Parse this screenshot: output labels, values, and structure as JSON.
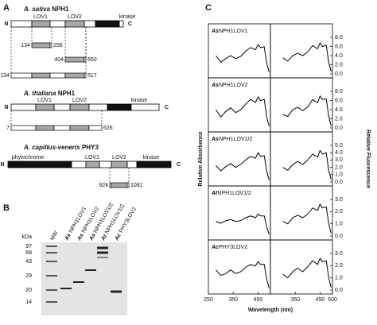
{
  "panel_a": {
    "label": "A",
    "constructs": [
      {
        "species": "A. sativa",
        "protein": "NPH1",
        "n_term": "N",
        "c_term": "C",
        "domains": [
          "LOV1",
          "LOV2",
          "kinase"
        ],
        "fragments": [
          {
            "start": 134,
            "end": 256
          },
          {
            "start": 404,
            "end": 550
          },
          {
            "start": 134,
            "end": 517
          }
        ]
      },
      {
        "species": "A. thaliana",
        "protein": "NPH1",
        "n_term": "N",
        "c_term": "C",
        "domains": [
          "LOV1",
          "LOV2",
          "kinase"
        ],
        "fragments": [
          {
            "start": 7,
            "end": 626
          }
        ]
      },
      {
        "species": "A. capillus-veneris",
        "protein": "PHY3",
        "n_term": "N",
        "c_term": "C",
        "domains": [
          "phytochrome",
          "LOV1",
          "LOV2",
          "kinase"
        ],
        "fragments": [
          {
            "start": 924,
            "end": 1081
          }
        ]
      }
    ]
  },
  "panel_b": {
    "label": "B",
    "unit": "kDa",
    "markers": [
      97,
      68,
      43,
      29,
      20,
      14
    ],
    "lanes": [
      {
        "name": "MW"
      },
      {
        "prefix": "As",
        "name": "NPH1LOV1"
      },
      {
        "prefix": "As",
        "name": "NPH1LOV2"
      },
      {
        "prefix": "As",
        "name": "NPH1LOV1/2"
      },
      {
        "prefix": "At",
        "name": "NPH1LOV1/2"
      },
      {
        "prefix": "Ac",
        "name": "PHY3LOV2"
      }
    ]
  },
  "panel_c": {
    "label": "C",
    "y_label": "Relative Absorbance",
    "y2_label": "Relative Fluorescence",
    "x_label": "Wavelength (nm)",
    "xlim": [
      250,
      500
    ],
    "xticks_left": [
      250,
      350,
      450
    ],
    "xticks_right": [
      350,
      450,
      500
    ],
    "x": [
      280,
      300,
      320,
      340,
      360,
      380,
      400,
      420,
      440,
      450,
      460,
      475,
      485,
      495
    ],
    "rows": [
      {
        "prefix": "As",
        "name": "NPH1LOV1",
        "ylim": [
          0,
          1
        ],
        "absorbance": [
          0.5,
          0.32,
          0.42,
          0.5,
          0.42,
          0.48,
          0.62,
          0.72,
          0.66,
          0.8,
          0.72,
          0.74,
          0.3,
          0.05
        ],
        "y2lim": [
          0,
          8
        ],
        "y2ticks": [
          {
            "value": 0,
            "label": "0.0"
          },
          {
            "value": 2,
            "label": "2.0"
          },
          {
            "value": 4,
            "label": "4.0"
          },
          {
            "value": 6,
            "label": "6.0"
          },
          {
            "value": 8,
            "label": "8.0"
          }
        ],
        "fluorescence": [
          null,
          3.5,
          2.8,
          4,
          4.5,
          4,
          4.8,
          6.2,
          5.5,
          6.8,
          6,
          6.3,
          2.5,
          0.5
        ]
      },
      {
        "prefix": "As",
        "name": "NPH1LOV2",
        "ylim": [
          0,
          1
        ],
        "absorbance": [
          0.5,
          0.3,
          0.45,
          0.55,
          0.42,
          0.5,
          0.65,
          0.78,
          0.7,
          0.85,
          0.75,
          0.78,
          0.3,
          0.05
        ],
        "y2lim": [
          0,
          8
        ],
        "y2ticks": [
          {
            "value": 0,
            "label": "0.0"
          },
          {
            "value": 2,
            "label": "2.0"
          },
          {
            "value": 4,
            "label": "4.0"
          },
          {
            "value": 6,
            "label": "6.0"
          },
          {
            "value": 8,
            "label": "8.0"
          }
        ],
        "fluorescence": [
          null,
          3,
          2.5,
          4,
          4.5,
          3.8,
          4.6,
          6.2,
          5.5,
          7,
          6.2,
          6.4,
          2.5,
          0.4
        ]
      },
      {
        "prefix": "As",
        "name": "NPH1LOV1/2",
        "ylim": [
          0,
          1
        ],
        "absorbance": [
          0.45,
          0.3,
          0.42,
          0.5,
          0.4,
          0.48,
          0.6,
          0.7,
          0.65,
          0.8,
          0.7,
          0.72,
          0.3,
          0.05
        ],
        "y2lim": [
          0,
          5
        ],
        "y2ticks": [
          {
            "value": 0,
            "label": "0.0"
          },
          {
            "value": 1,
            "label": "1.0"
          },
          {
            "value": 2,
            "label": "2.0"
          },
          {
            "value": 3,
            "label": "3.0"
          },
          {
            "value": 4,
            "label": "4.0"
          },
          {
            "value": 5,
            "label": "5.0"
          }
        ],
        "fluorescence": [
          null,
          2,
          1.6,
          2.4,
          2.8,
          2.4,
          3,
          3.8,
          3.4,
          4.3,
          3.8,
          4,
          1.6,
          0.3
        ]
      },
      {
        "prefix": "At",
        "name": "NPH1LOV1/2",
        "ylim": [
          0,
          1
        ],
        "absorbance": [
          0.4,
          0.35,
          0.42,
          0.45,
          0.4,
          0.42,
          0.5,
          0.55,
          0.5,
          0.6,
          0.55,
          0.55,
          0.25,
          0.05
        ],
        "y2lim": [
          0,
          3
        ],
        "y2ticks": [
          {
            "value": 0,
            "label": "0.0"
          },
          {
            "value": 1,
            "label": "1.0"
          },
          {
            "value": 2,
            "label": "2.0"
          },
          {
            "value": 3,
            "label": "3.0"
          }
        ],
        "fluorescence": [
          null,
          1.2,
          1,
          1.5,
          1.7,
          1.5,
          1.8,
          2.3,
          2.1,
          2.6,
          2.3,
          2.4,
          1,
          0.2
        ]
      },
      {
        "prefix": "Ac",
        "name": "PHY3LOV2",
        "ylim": [
          0,
          1
        ],
        "absorbance": [
          0.55,
          0.4,
          0.45,
          0.55,
          0.45,
          0.5,
          0.62,
          0.7,
          0.66,
          0.78,
          0.7,
          0.7,
          0.3,
          0.05
        ],
        "y2lim": [
          0,
          3
        ],
        "y2ticks": [
          {
            "value": 0,
            "label": "0.0"
          },
          {
            "value": 1,
            "label": "1.0"
          },
          {
            "value": 2,
            "label": "2.0"
          },
          {
            "value": 3,
            "label": "3.0"
          }
        ],
        "fluorescence": [
          null,
          1.3,
          1,
          1.5,
          1.8,
          1.5,
          1.9,
          2.4,
          2.1,
          2.6,
          2.3,
          2.4,
          1,
          0.2
        ]
      }
    ]
  }
}
